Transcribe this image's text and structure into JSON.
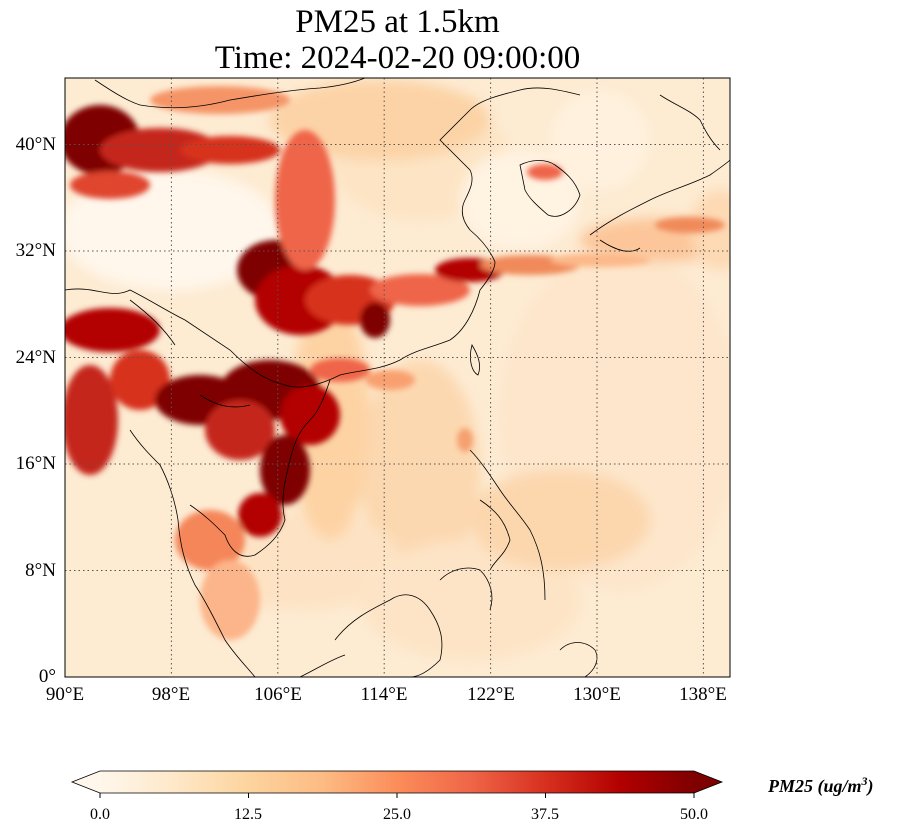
{
  "title": {
    "line1": "PM25 at 1.5km",
    "line2": "Time: 2024-02-20 09:00:00"
  },
  "axes": {
    "lat_ticks": [
      "0°",
      "8°N",
      "16°N",
      "24°N",
      "32°N",
      "40°N"
    ],
    "lon_ticks": [
      "90°E",
      "98°E",
      "106°E",
      "114°E",
      "122°E",
      "130°E",
      "138°E"
    ],
    "lat_range": [
      0,
      45
    ],
    "lon_range": [
      90,
      140
    ],
    "grid": "dotted"
  },
  "colorbar": {
    "label_main": "PM25 (ug/m",
    "label_sup": "3",
    "label_end": ")",
    "ticks": [
      "0.0",
      "12.5",
      "25.0",
      "37.5",
      "50.0"
    ],
    "min": 0,
    "max": 50,
    "colormap": "OrRd",
    "colors": [
      "#fff7ec",
      "#fee8c8",
      "#fdd49e",
      "#fdbb84",
      "#fc8d59",
      "#ef6548",
      "#d7301f",
      "#b30000",
      "#7f0000"
    ]
  }
}
